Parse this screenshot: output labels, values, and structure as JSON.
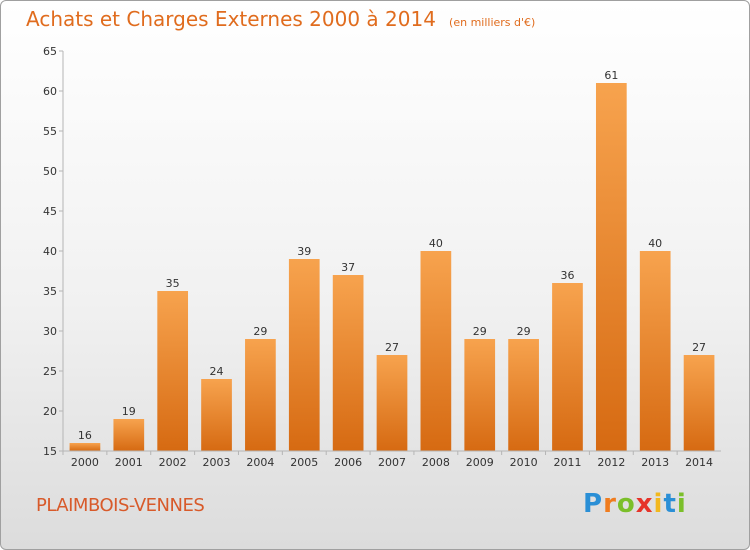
{
  "chart_data": {
    "type": "bar",
    "title": "Achats et Charges Externes 2000 à 2014",
    "subtitle": "(en milliers d'€)",
    "categories": [
      "2000",
      "2001",
      "2002",
      "2003",
      "2004",
      "2005",
      "2006",
      "2007",
      "2008",
      "2009",
      "2010",
      "2011",
      "2012",
      "2013",
      "2014"
    ],
    "values": [
      16,
      19,
      35,
      24,
      29,
      39,
      37,
      27,
      40,
      29,
      29,
      36,
      61,
      40,
      27
    ],
    "xlabel": "",
    "ylabel": "",
    "ylim": [
      15,
      65
    ],
    "yticks": [
      15,
      20,
      25,
      30,
      35,
      40,
      45,
      50,
      55,
      60,
      65
    ],
    "grid": false,
    "bar_color": "#f08a2c"
  },
  "footer": {
    "town": "PLAIMBOIS-VENNES",
    "logo_letters": [
      "P",
      "r",
      "o",
      "x",
      "i",
      "t",
      "i"
    ],
    "logo_colors": [
      "#2a8fd6",
      "#f07c1e",
      "#7bbf2a",
      "#e6342a",
      "#f2b81e",
      "#2a8fd6",
      "#7bbf2a"
    ]
  }
}
